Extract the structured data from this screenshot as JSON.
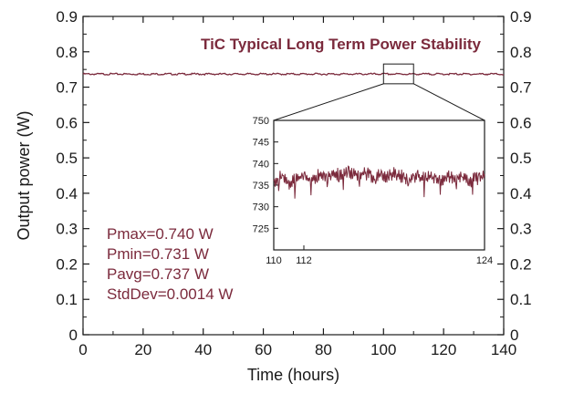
{
  "chart_data": [
    {
      "type": "line",
      "title": "TiC Typical Long Term Power Stability",
      "xlabel": "Time (hours)",
      "ylabel": "Output power (W)",
      "xlim": [
        0,
        140
      ],
      "ylim": [
        0,
        0.9
      ],
      "xticks": [
        0,
        20,
        40,
        60,
        80,
        100,
        120,
        140
      ],
      "yticks": [
        0,
        0.1,
        0.2,
        0.3,
        0.4,
        0.5,
        0.6,
        0.7,
        0.8,
        0.9
      ],
      "right_axis_ticks": [
        0,
        0.1,
        0.2,
        0.3,
        0.4,
        0.5,
        0.6,
        0.7,
        0.8,
        0.9
      ],
      "grid": false,
      "series": [
        {
          "color": "#7b2a3c",
          "x": [
            0,
            10,
            20,
            30,
            40,
            50,
            60,
            70,
            80,
            90,
            100,
            110,
            120,
            130,
            140
          ],
          "y": [
            0.737,
            0.737,
            0.737,
            0.737,
            0.737,
            0.737,
            0.737,
            0.737,
            0.737,
            0.737,
            0.737,
            0.737,
            0.737,
            0.737,
            0.737
          ]
        }
      ],
      "annotations": [
        "Pmax=0.740 W",
        "Pmin=0.731 W",
        "Pavg=0.737 W",
        "StdDev=0.0014 W"
      ],
      "zoom_box": {
        "x": [
          100,
          110
        ],
        "y": [
          0.725,
          0.75
        ]
      }
    },
    {
      "type": "line",
      "xlim": [
        110,
        124
      ],
      "ylim": [
        720,
        750
      ],
      "xticks": [
        110,
        112,
        124
      ],
      "yticks": [
        725,
        730,
        735,
        740,
        745,
        750
      ],
      "grid": false,
      "series": [
        {
          "color": "#7b2a3c",
          "x": [
            110,
            110.5,
            111,
            111.5,
            112,
            112.5,
            113,
            113.5,
            114,
            114.5,
            115,
            115.5,
            116,
            116.5,
            117,
            117.5,
            118,
            118.5,
            119,
            119.5,
            120,
            120.5,
            121,
            121.5,
            122,
            122.5,
            123,
            123.5,
            124
          ],
          "y": [
            736,
            737,
            735,
            736.5,
            737,
            736,
            737.5,
            737,
            738,
            737,
            738,
            737.5,
            738,
            737,
            737.5,
            737,
            738,
            737,
            736.5,
            737,
            736.5,
            737,
            736,
            737,
            736.5,
            737,
            736,
            736.5,
            737
          ]
        }
      ]
    }
  ],
  "colors": {
    "accent": "#7b2a3c",
    "axis": "#1a1a1a"
  }
}
